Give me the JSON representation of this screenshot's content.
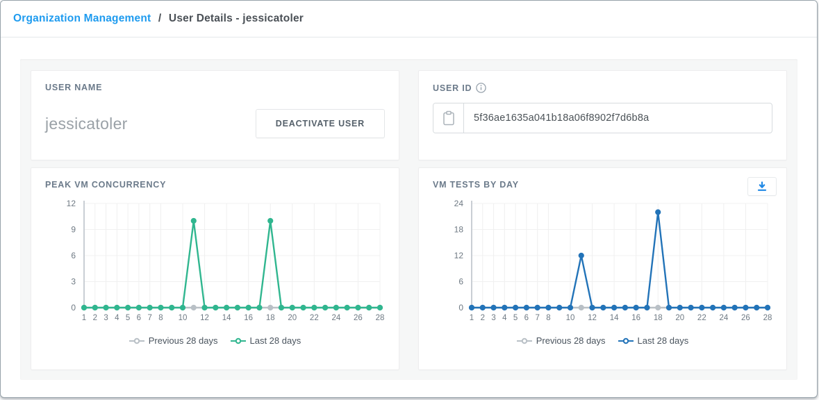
{
  "breadcrumb": {
    "link": "Organization Management",
    "separator": "/",
    "current": "User Details - jessicatoler"
  },
  "user_name_card": {
    "title": "USER NAME",
    "value": "jessicatoler",
    "deactivate_label": "DEACTIVATE USER"
  },
  "user_id_card": {
    "title": "USER ID",
    "info_icon": "info-circle",
    "copy_icon": "clipboard",
    "value": "5f36ae1635a041b18a06f8902f7d6b8a"
  },
  "colors": {
    "link_blue": "#1e9bef",
    "teal_series": "#30b68f",
    "blue_series": "#2273b8",
    "gray_series": "#b9c0c6",
    "download_icon_blue": "#1e88e5",
    "axis_text": "#6e7983",
    "axis_line": "#c9ced4",
    "grid_line": "#f0f0f0"
  },
  "download_button": {
    "icon": "download-arrow"
  },
  "chart_data": [
    {
      "type": "line",
      "title": "PEAK VM CONCURRENCY",
      "x": [
        1,
        2,
        3,
        4,
        5,
        6,
        7,
        8,
        9,
        10,
        11,
        12,
        13,
        14,
        15,
        16,
        17,
        18,
        19,
        20,
        21,
        22,
        23,
        24,
        25,
        26,
        27,
        28
      ],
      "x_tick_labels": [
        1,
        2,
        3,
        4,
        5,
        6,
        7,
        8,
        10,
        12,
        14,
        16,
        18,
        20,
        22,
        24,
        26,
        28
      ],
      "ylim": [
        0,
        12
      ],
      "y_ticks": [
        0,
        3,
        6,
        9,
        12
      ],
      "grid": true,
      "legend_position": "bottom",
      "series": [
        {
          "name": "Previous 28 days",
          "color": "#b9c0c6",
          "values": [
            0,
            0,
            0,
            0,
            0,
            0,
            0,
            0,
            0,
            0,
            0,
            0,
            0,
            0,
            0,
            0,
            0,
            0,
            0,
            0,
            0,
            0,
            0,
            0,
            0,
            0,
            0,
            0
          ]
        },
        {
          "name": "Last 28 days",
          "color": "#30b68f",
          "values": [
            0,
            0,
            0,
            0,
            0,
            0,
            0,
            0,
            0,
            0,
            10,
            0,
            0,
            0,
            0,
            0,
            0,
            10,
            0,
            0,
            0,
            0,
            0,
            0,
            0,
            0,
            0,
            0
          ]
        }
      ]
    },
    {
      "type": "line",
      "title": "VM TESTS BY DAY",
      "x": [
        1,
        2,
        3,
        4,
        5,
        6,
        7,
        8,
        9,
        10,
        11,
        12,
        13,
        14,
        15,
        16,
        17,
        18,
        19,
        20,
        21,
        22,
        23,
        24,
        25,
        26,
        27,
        28
      ],
      "x_tick_labels": [
        1,
        2,
        3,
        4,
        5,
        6,
        7,
        8,
        10,
        12,
        14,
        16,
        18,
        20,
        22,
        24,
        26,
        28
      ],
      "ylim": [
        0,
        24
      ],
      "y_ticks": [
        0,
        6,
        12,
        18,
        24
      ],
      "grid": true,
      "legend_position": "bottom",
      "series": [
        {
          "name": "Previous 28 days",
          "color": "#b9c0c6",
          "values": [
            0,
            0,
            0,
            0,
            0,
            0,
            0,
            0,
            0,
            0,
            0,
            0,
            0,
            0,
            0,
            0,
            0,
            0,
            0,
            0,
            0,
            0,
            0,
            0,
            0,
            0,
            0,
            0
          ]
        },
        {
          "name": "Last 28 days",
          "color": "#2273b8",
          "values": [
            0,
            0,
            0,
            0,
            0,
            0,
            0,
            0,
            0,
            0,
            12,
            0,
            0,
            0,
            0,
            0,
            0,
            22,
            0,
            0,
            0,
            0,
            0,
            0,
            0,
            0,
            0,
            0
          ]
        }
      ]
    }
  ]
}
